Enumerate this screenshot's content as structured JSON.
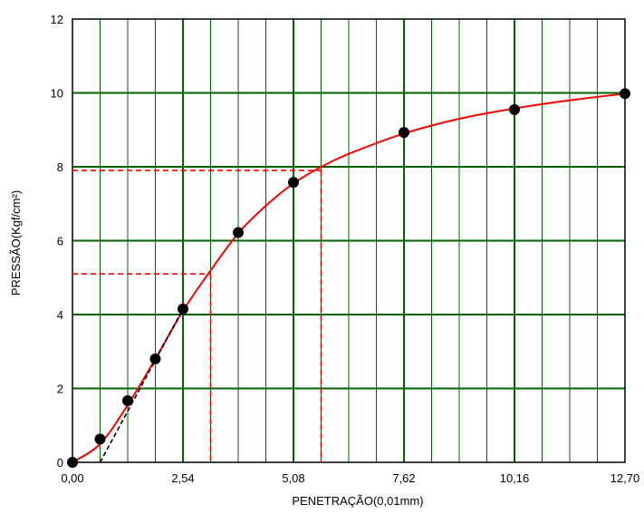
{
  "chart_data": {
    "type": "line",
    "title": "",
    "xlabel": "PENETRAÇÃO(0,01mm)",
    "ylabel": "PRESSÃO(Kgf/cm²)",
    "xlim": [
      0,
      12.7
    ],
    "ylim": [
      0,
      12
    ],
    "x_ticks": [
      0,
      2.54,
      5.08,
      7.62,
      10.16,
      12.7
    ],
    "x_tick_labels": [
      "0,00",
      "2,54",
      "5,08",
      "7,62",
      "10,16",
      "12,70"
    ],
    "y_ticks": [
      0,
      2,
      4,
      6,
      8,
      10,
      12
    ],
    "y_tick_labels": [
      "0",
      "2",
      "4",
      "6",
      "8",
      "10",
      "12"
    ],
    "grid": true,
    "minor_x_step": 0.635,
    "series": [
      {
        "kind": "markers",
        "color": "#000000",
        "x": [
          0,
          0.635,
          1.27,
          1.905,
          2.54,
          3.81,
          5.08,
          7.62,
          10.16,
          12.7
        ],
        "y": [
          0,
          0.63,
          1.67,
          2.8,
          4.15,
          6.22,
          7.58,
          8.93,
          9.55,
          9.98
        ]
      },
      {
        "kind": "fit-curve",
        "color": "#ff0000",
        "x": [
          0,
          0.635,
          1.27,
          1.905,
          2.54,
          3.18,
          3.81,
          4.45,
          5.08,
          5.72,
          6.35,
          7.62,
          8.89,
          10.16,
          11.43,
          12.7
        ],
        "y": [
          0,
          0.5,
          1.55,
          2.8,
          4.1,
          5.2,
          6.2,
          6.95,
          7.55,
          8.0,
          8.35,
          8.9,
          9.3,
          9.58,
          9.8,
          9.98
        ]
      },
      {
        "kind": "correction-line",
        "color": "#000000",
        "x": [
          0.635,
          2.54
        ],
        "y": [
          0,
          4.15
        ]
      }
    ],
    "guides": [
      {
        "x": 3.175,
        "y": 5.1,
        "color": "#ff0000"
      },
      {
        "x": 5.715,
        "y": 7.9,
        "color": "#ff0000"
      }
    ],
    "colors": {
      "grid": "#006400",
      "curve": "#ff0000",
      "guide": "#ff0000",
      "point": "#000000"
    }
  }
}
